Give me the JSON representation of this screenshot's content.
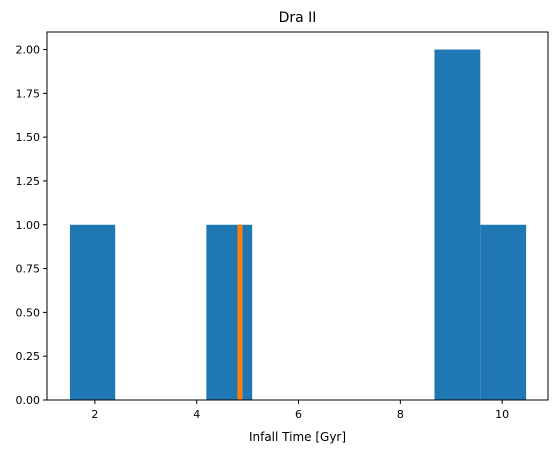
{
  "chart_data": {
    "type": "bar",
    "title": "Dra II",
    "xlabel": "Infall Time [Gyr]",
    "ylabel": "",
    "xlim": [
      1.06,
      10.9
    ],
    "ylim": [
      0,
      2.1
    ],
    "grid": false,
    "xticks": [
      2,
      4,
      6,
      8,
      10
    ],
    "xtick_labels": [
      "2",
      "4",
      "6",
      "8",
      "10"
    ],
    "yticks": [
      0,
      0.25,
      0.5,
      0.75,
      1.0,
      1.25,
      1.5,
      1.75,
      2.0
    ],
    "ytick_labels": [
      "0.00",
      "0.25",
      "0.50",
      "0.75",
      "1.00",
      "1.25",
      "1.50",
      "1.75",
      "2.00"
    ],
    "series": [
      {
        "color": "#1f77b4",
        "bins": [
          {
            "x0": 1.51,
            "x1": 2.4,
            "count": 1
          },
          {
            "x0": 4.19,
            "x1": 5.09,
            "count": 1
          },
          {
            "x0": 8.67,
            "x1": 9.57,
            "count": 2
          },
          {
            "x0": 9.57,
            "x1": 10.47,
            "count": 1
          }
        ]
      },
      {
        "color": "#ff7f0e",
        "bins": [
          {
            "x0": 4.8,
            "x1": 4.9,
            "count": 1
          }
        ]
      }
    ]
  }
}
